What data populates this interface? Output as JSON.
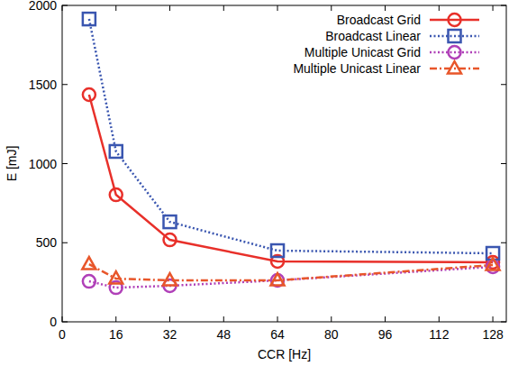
{
  "chart_data": {
    "type": "line",
    "x_label": "CCR [Hz]",
    "y_label": "E [mJ]",
    "x": [
      8,
      16,
      32,
      64,
      128
    ],
    "xlim": [
      0,
      132
    ],
    "xticks": [
      0,
      16,
      32,
      48,
      64,
      80,
      96,
      112,
      128
    ],
    "ylim": [
      0,
      2000
    ],
    "yticks": [
      0,
      500,
      1000,
      1500,
      2000
    ],
    "grid": false,
    "legend": "top-right",
    "series": [
      {
        "name": "Broadcast Grid",
        "color": "#e8302a",
        "marker": "circle",
        "line_style": "solid",
        "values": [
          1436,
          803,
          518,
          382,
          376
        ]
      },
      {
        "name": "Broadcast Linear",
        "color": "#3a56b0",
        "marker": "square",
        "line_style": "dotted",
        "values": [
          1914,
          1077,
          632,
          450,
          433
        ]
      },
      {
        "name": "Multiple Unicast Grid",
        "color": "#b040b8",
        "marker": "circle",
        "line_style": "dotted",
        "values": [
          256,
          216,
          228,
          262,
          348
        ]
      },
      {
        "name": "Multiple Unicast Linear",
        "color": "#e8562a",
        "marker": "triangle",
        "line_style": "dashdot",
        "values": [
          364,
          273,
          262,
          262,
          359
        ]
      }
    ]
  }
}
